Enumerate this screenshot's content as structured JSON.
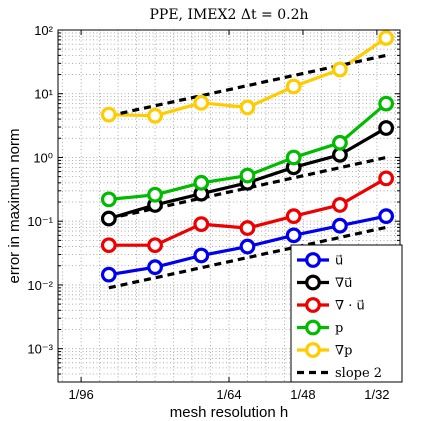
{
  "chart_data": {
    "type": "line",
    "title": "PPE, IMEX2 Δt = 0.2h",
    "xlabel": "mesh resolution h",
    "ylabel": "error in maximum norm",
    "x_tick_labels": [
      "1/96",
      "1/64",
      "1/48",
      "1/32"
    ],
    "x_ticks": [
      0.0104167,
      0.015625,
      0.0208333,
      0.03125
    ],
    "x_scale": "reciprocal",
    "y_scale": "log",
    "ylim": [
      0.0003,
      100
    ],
    "y_tick_labels": [
      "10⁻³",
      "10⁻²",
      "10⁻¹",
      "10⁰",
      "10¹",
      "10²"
    ],
    "y_ticks": [
      0.001,
      0.01,
      0.1,
      1,
      10,
      100
    ],
    "grid": true,
    "legend_position": "bottom-right",
    "x": [
      0.0111111,
      0.0125,
      0.0142857,
      0.0166667,
      0.02,
      0.025,
      0.0333333
    ],
    "series": [
      {
        "name": "u⃗",
        "color": "#0000ee",
        "values": [
          0.0145,
          0.019,
          0.029,
          0.04,
          0.06,
          0.085,
          0.12
        ]
      },
      {
        "name": "∇u⃗",
        "color": "#000000",
        "values": [
          0.11,
          0.18,
          0.27,
          0.4,
          0.7,
          1.1,
          2.9
        ]
      },
      {
        "name": "∇ · u⃗",
        "color": "#ee0000",
        "values": [
          0.042,
          0.042,
          0.09,
          0.078,
          0.12,
          0.18,
          0.47
        ]
      },
      {
        "name": "p",
        "color": "#00bb00",
        "values": [
          0.22,
          0.26,
          0.4,
          0.52,
          1.0,
          1.7,
          7.0
        ]
      },
      {
        "name": "∇p",
        "color": "#ffcc00",
        "values": [
          4.7,
          4.5,
          7.2,
          6.1,
          13.0,
          24.0,
          75.0
        ]
      },
      {
        "name": "slope 2",
        "style": "dashed",
        "color": "#000000",
        "lines": [
          {
            "x": [
              0.0111111,
              0.0333333
            ],
            "values": [
              0.009,
              0.08
            ]
          },
          {
            "x": [
              0.0111111,
              0.0333333
            ],
            "values": [
              0.11,
              1.0
            ]
          },
          {
            "x": [
              0.0111111,
              0.0333333
            ],
            "values": [
              4.5,
              40.0
            ]
          }
        ]
      }
    ]
  }
}
